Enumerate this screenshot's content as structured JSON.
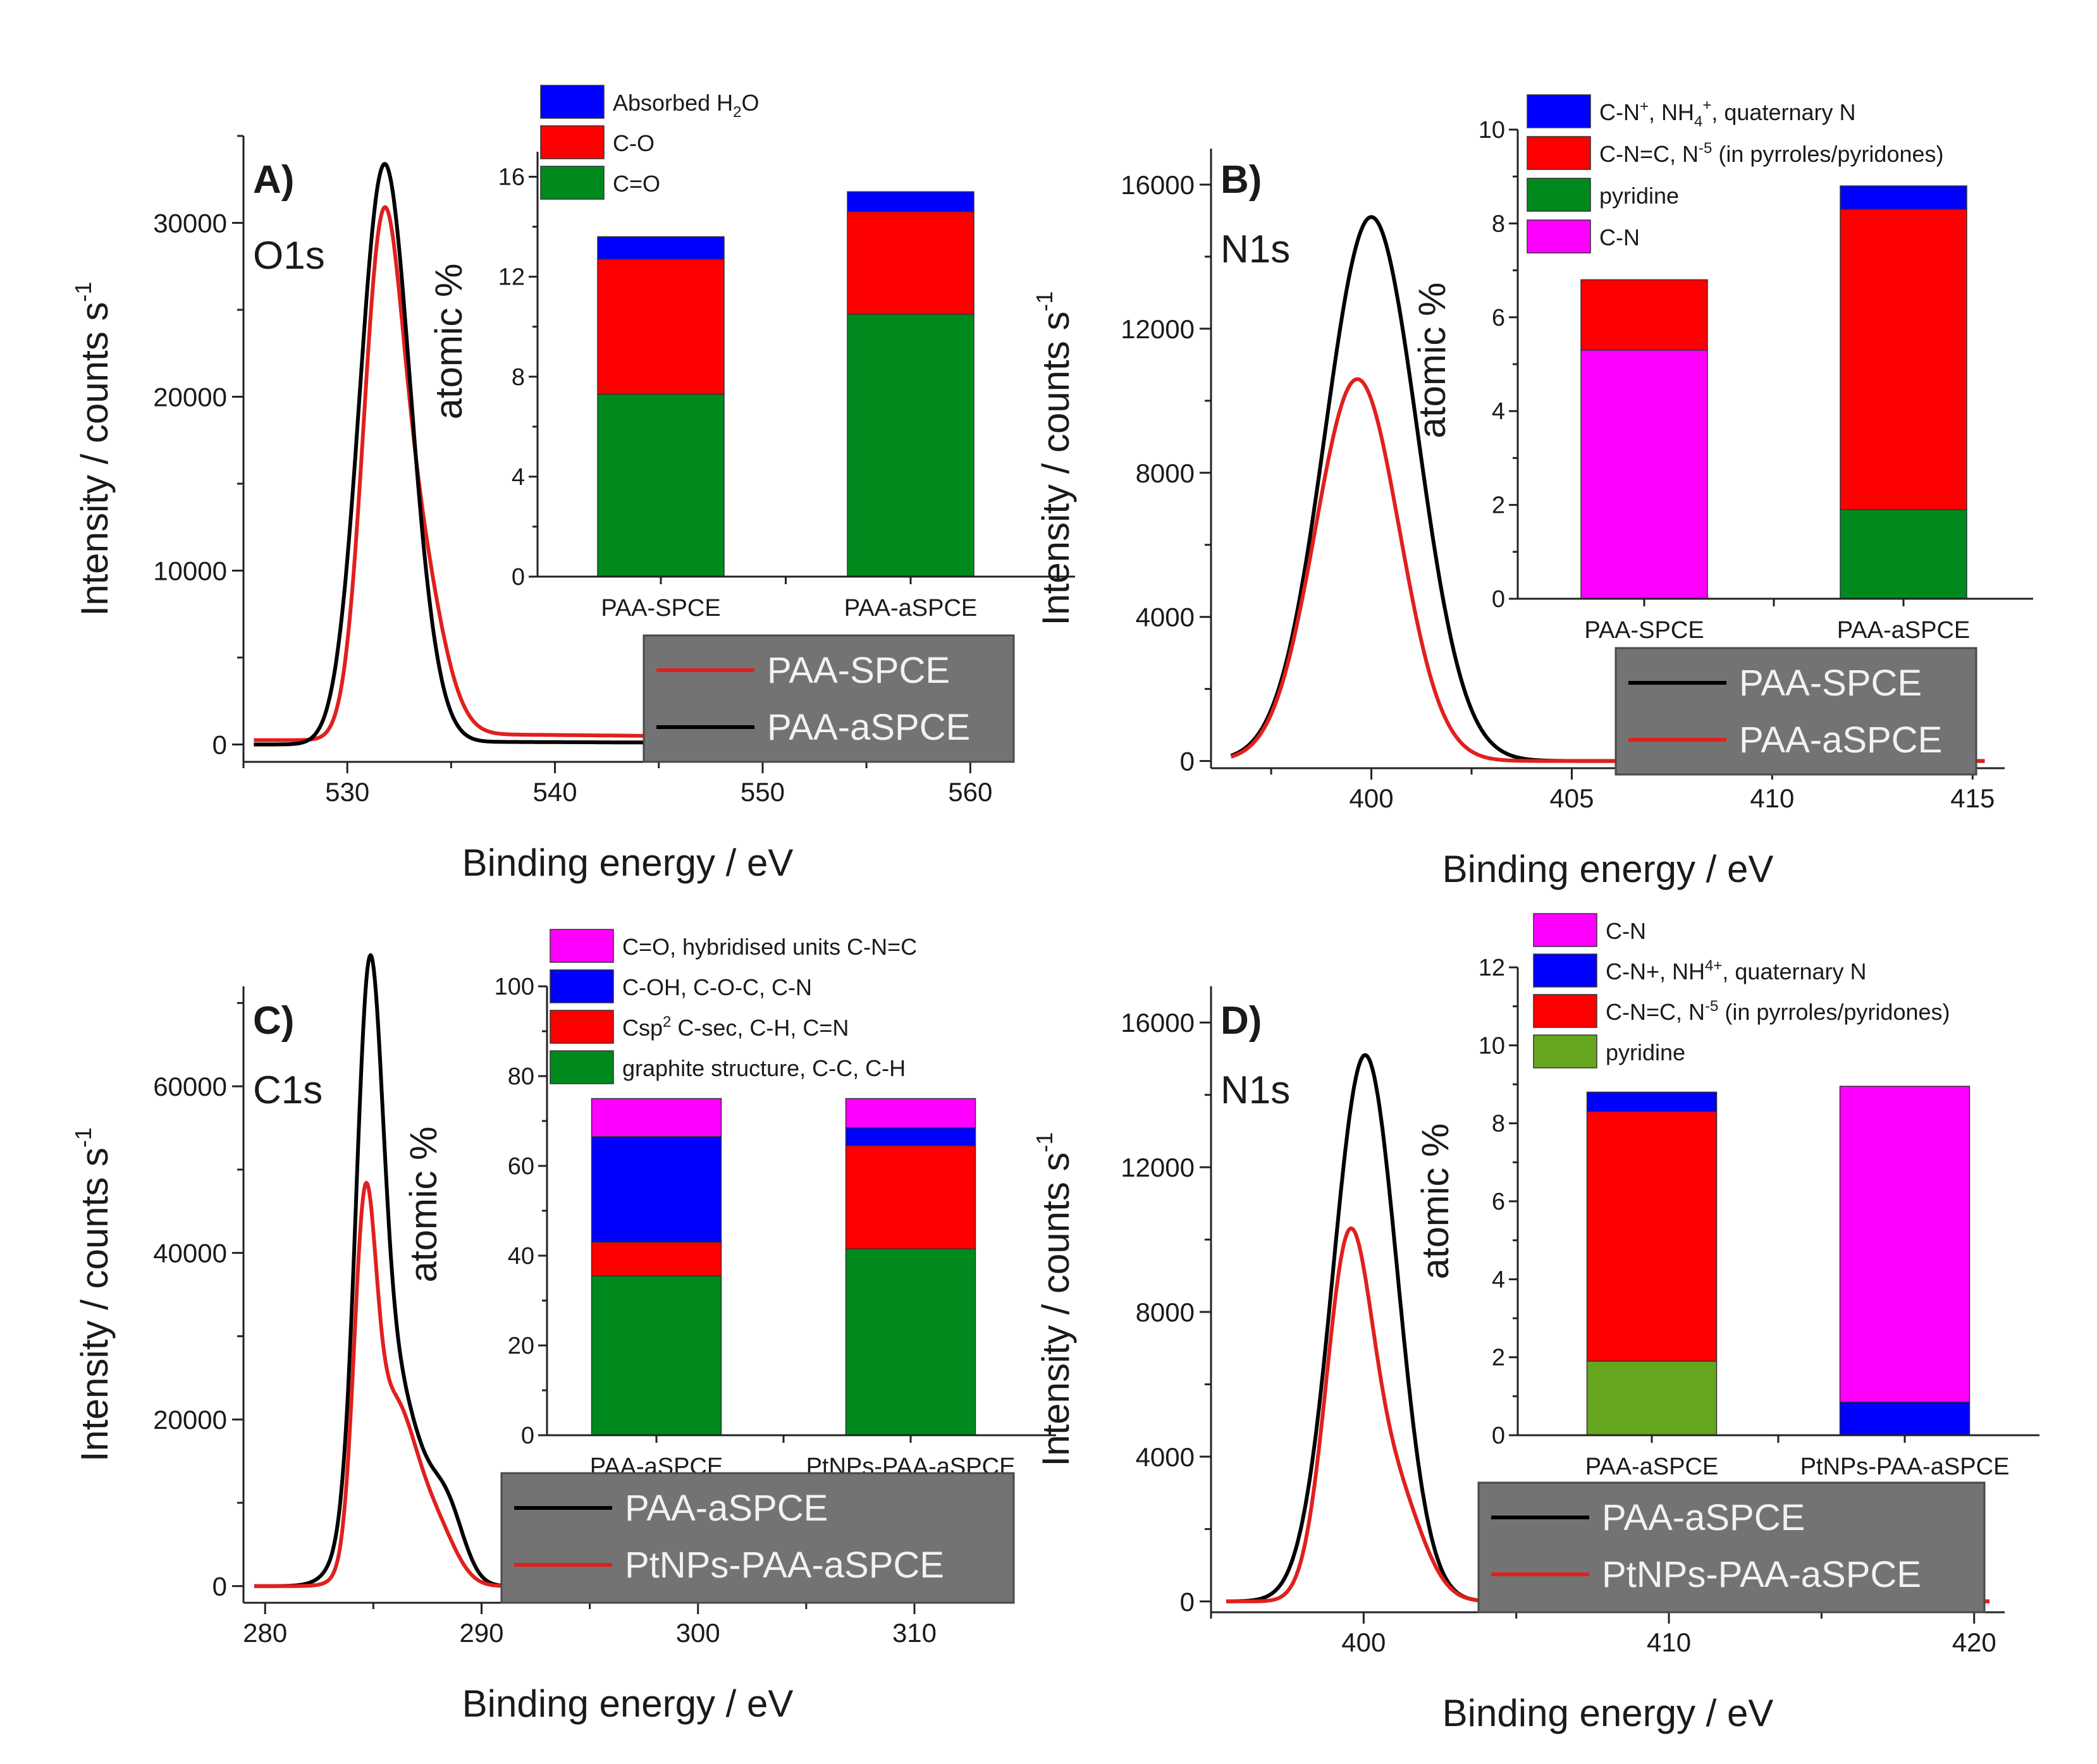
{
  "chart_data": [
    {
      "type": "line",
      "panel_label": "A)",
      "element_label": "O1s",
      "xlabel": "Binding energy / eV",
      "ylabel": "Intensity / counts s",
      "ylabel_sup": "-1",
      "xlim": [
        525,
        562
      ],
      "ylim": [
        -1000,
        35000
      ],
      "xticks": [
        530,
        540,
        550,
        560
      ],
      "yticks": [
        0,
        10000,
        20000,
        30000
      ],
      "series": [
        {
          "name": "PAA-SPCE",
          "color": "#e0201e",
          "peaks": [
            [
              531.6,
              23000,
              0.9
            ],
            [
              533.0,
              12500,
              1.3
            ]
          ],
          "tail": 0.018,
          "baseline": 250
        },
        {
          "name": "PAA-aSPCE",
          "color": "#000000",
          "peaks": [
            [
              531.7,
              31500,
              1.15
            ],
            [
              533.2,
              4500,
              1.1
            ]
          ],
          "tail": 0.006,
          "baseline": 0
        }
      ],
      "legend": [
        "PAA-SPCE",
        "PAA-aSPCE"
      ],
      "inset": {
        "type": "stacked_bar",
        "ylabel": "atomic %",
        "ylim": [
          0,
          17
        ],
        "yticks": [
          0,
          4,
          8,
          12,
          16
        ],
        "categories": [
          "PAA-SPCE",
          "PAA-aSPCE"
        ],
        "series": [
          {
            "name": "C=O",
            "color": "#008a1e",
            "values": [
              7.3,
              10.5
            ]
          },
          {
            "name": "C-O",
            "color": "#ff0000",
            "values": [
              5.4,
              4.1
            ]
          },
          {
            "name": "Absorbed H2O",
            "label_main": "Absorbed H",
            "label_sub": "2",
            "label_end": "O",
            "color": "#0000ff",
            "values": [
              0.9,
              0.8
            ]
          }
        ]
      }
    },
    {
      "type": "line",
      "panel_label": "B)",
      "element_label": "N1s",
      "xlabel": "Binding energy / eV",
      "ylabel": "Intensity / counts s",
      "ylabel_sup": "-1",
      "xlim": [
        396,
        415.8
      ],
      "ylim": [
        -200,
        17000
      ],
      "xticks": [
        400,
        405,
        410,
        415
      ],
      "yticks": [
        0,
        4000,
        8000,
        12000,
        16000
      ],
      "series": [
        {
          "name": "PAA-SPCE",
          "color": "#000000",
          "peaks": [
            [
              400.0,
              15100,
              1.15
            ]
          ],
          "tail": 0,
          "baseline": 0
        },
        {
          "name": "PAA-aSPCE",
          "color": "#e0201e",
          "peaks": [
            [
              399.65,
              10600,
              1.05
            ]
          ],
          "tail": 0,
          "baseline": 0
        }
      ],
      "legend": [
        "PAA-SPCE",
        "PAA-aSPCE"
      ],
      "inset": {
        "type": "stacked_bar",
        "ylabel": "atomic %",
        "ylim": [
          0,
          10
        ],
        "yticks": [
          0,
          2,
          4,
          6,
          8,
          10
        ],
        "categories": [
          "PAA-SPCE",
          "PAA-aSPCE"
        ],
        "series": [
          {
            "name": "C-N",
            "color": "#ff00ff",
            "values": [
              5.3,
              0
            ]
          },
          {
            "name": "pyridine",
            "color": "#008a1e",
            "values": [
              0,
              1.9
            ]
          },
          {
            "name": "C-N=C, N-5 (in pyrroles/pyridones)",
            "label_main": "C-N=C, N",
            "label_sup": "-5",
            "label_end": " (in pyrroles/pyridones)",
            "color": "#ff0000",
            "values": [
              1.5,
              6.4
            ]
          },
          {
            "name": "C-N+, NH4+, quaternary N",
            "label_main": "C-N",
            "label_sup": "+",
            "label_end": ", NH",
            "label_sub2": "4",
            "label_sup2": "+",
            "label_end2": ", quaternary N",
            "color": "#0000ff",
            "values": [
              0,
              0.5
            ]
          }
        ]
      }
    },
    {
      "type": "line",
      "panel_label": "C)",
      "element_label": "C1s",
      "xlabel": "Binding energy / eV",
      "ylabel": "Intensity / counts s",
      "ylabel_sup": "-1",
      "xlim": [
        279,
        314.5
      ],
      "ylim": [
        -2000,
        72000
      ],
      "xticks": [
        280,
        290,
        300,
        310
      ],
      "yticks": [
        0,
        20000,
        40000,
        60000
      ],
      "series": [
        {
          "name": "PAA-aSPCE",
          "color": "#000000",
          "peaks": [
            [
              284.8,
              56000,
              0.6
            ],
            [
              285.8,
              26000,
              1.3
            ],
            [
              288.4,
              8000,
              0.8
            ]
          ],
          "tail": 0,
          "baseline": 0
        },
        {
          "name": "PtNPs-PAA-aSPCE",
          "color": "#e0201e",
          "peaks": [
            [
              284.6,
              37000,
              0.5
            ],
            [
              285.9,
              22000,
              1.1
            ],
            [
              288.0,
              5500,
              0.9
            ]
          ],
          "tail": 0,
          "baseline": 0
        }
      ],
      "legend": [
        "PAA-aSPCE",
        "PtNPs-PAA-aSPCE"
      ],
      "inset": {
        "type": "stacked_bar",
        "ylabel": "atomic %",
        "ylim": [
          0,
          100
        ],
        "yticks": [
          0,
          20,
          40,
          60,
          80,
          100
        ],
        "categories": [
          "PAA-aSPCE",
          "PtNPs-PAA-aSPCE"
        ],
        "series": [
          {
            "name": "graphite structure, C-C, C-H",
            "color": "#008a1e",
            "values": [
              35.5,
              41.5
            ]
          },
          {
            "name": "Csp2 C-sec, C-H, C=N",
            "label_main": "Csp",
            "label_sup": "2",
            "label_end": " C-sec, C-H, C=N",
            "color": "#ff0000",
            "values": [
              7.5,
              23
            ]
          },
          {
            "name": "C-OH, C-O-C, C-N",
            "color": "#0000ff",
            "values": [
              23.5,
              4
            ]
          },
          {
            "name": "C=O, hybridised units C-N=C",
            "color": "#ff00ff",
            "values": [
              8.5,
              6.5
            ]
          }
        ]
      }
    },
    {
      "type": "line",
      "panel_label": "D)",
      "element_label": "N1s",
      "xlabel": "Binding energy / eV",
      "ylabel": "Intensity / counts s",
      "ylabel_sup": "-1",
      "xlim": [
        395,
        421
      ],
      "ylim": [
        -300,
        17000
      ],
      "xticks": [
        400,
        410,
        420
      ],
      "yticks": [
        0,
        4000,
        8000,
        12000,
        16000
      ],
      "series": [
        {
          "name": "PAA-aSPCE",
          "color": "#000000",
          "peaks": [
            [
              400.05,
              15100,
              1.05
            ]
          ],
          "tail": 0,
          "baseline": 0
        },
        {
          "name": "PtNPs-PAA-aSPCE",
          "color": "#e0201e",
          "peaks": [
            [
              399.5,
              9500,
              0.75
            ],
            [
              401.0,
              3000,
              0.9
            ]
          ],
          "tail": 0,
          "baseline": 0
        }
      ],
      "legend": [
        "PAA-aSPCE",
        "PtNPs-PAA-aSPCE"
      ],
      "inset": {
        "type": "stacked_bar",
        "ylabel": "atomic %",
        "ylim": [
          0,
          12
        ],
        "yticks": [
          0,
          2,
          4,
          6,
          8,
          10,
          12
        ],
        "categories": [
          "PAA-aSPCE",
          "PtNPs-PAA-aSPCE"
        ],
        "series": [
          {
            "name": "pyridine",
            "color": "#66a61e",
            "values": [
              1.9,
              0
            ]
          },
          {
            "name": "C-N=C, N-5 (in pyrroles/pyridones)",
            "label_main": "C-N=C, N",
            "label_sup": "-5",
            "label_end": " (in pyrroles/pyridones)",
            "color": "#ff0000",
            "values": [
              6.4,
              0
            ]
          },
          {
            "name": "C-N+, NH4+, quaternary N",
            "label_main": "C-N+, NH",
            "label_sup": "4+",
            "label_end": ", quaternary N",
            "color": "#0000ff",
            "values": [
              0.5,
              0.85
            ]
          },
          {
            "name": "C-N",
            "color": "#ff00ff",
            "values": [
              0,
              8.1
            ]
          }
        ]
      }
    }
  ]
}
